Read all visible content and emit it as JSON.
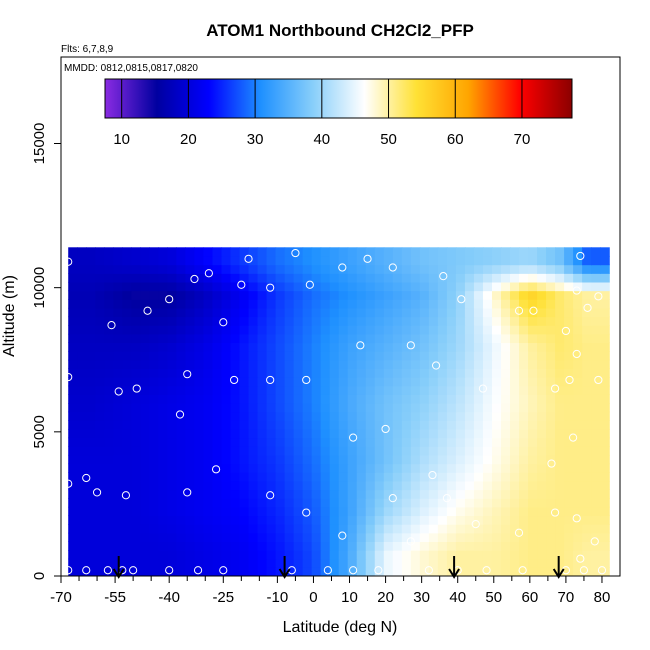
{
  "chart_data": {
    "type": "heatmap",
    "title": "ATOM1 Northbound CH2Cl2_PFP",
    "annotations": [
      "Flts: 6,7,8,9",
      "MMDD: 0812,0815,0817,0820"
    ],
    "xlabel": "Latitude (deg N)",
    "ylabel": "Altitude (m)",
    "xlim": [
      -70,
      85
    ],
    "ylim": [
      0,
      18000
    ],
    "x_ticks": [
      -70,
      -55,
      -40,
      -25,
      -10,
      0,
      10,
      20,
      30,
      40,
      50,
      60,
      70,
      80
    ],
    "x_tick_labels": [
      "-70",
      "-55",
      "-40",
      "-25",
      "-10",
      "0",
      "10",
      "20",
      "30",
      "40",
      "50",
      "60",
      "70",
      "80"
    ],
    "x_minor_ticks": [
      -65,
      -60,
      -50,
      -45,
      -35,
      -30,
      -20,
      -15,
      -5,
      5,
      15,
      25,
      35,
      45,
      55,
      65,
      75
    ],
    "y_ticks": [
      0,
      5000,
      10000,
      15000
    ],
    "y_tick_labels": [
      "0",
      "5000",
      "10000",
      "15000"
    ],
    "colorbar": {
      "min": 7.5,
      "max": 77.5,
      "ticks": [
        10,
        20,
        30,
        40,
        50,
        60,
        70
      ],
      "tick_labels": [
        "10",
        "20",
        "30",
        "40",
        "50",
        "60",
        "70"
      ],
      "colors": [
        "#8a2be2",
        "#0000a0",
        "#0000ff",
        "#1e90ff",
        "#87cefa",
        "#ffffff",
        "#ffe135",
        "#ffa500",
        "#ff0000",
        "#8b0000"
      ]
    },
    "grid": false,
    "value_grid": {
      "x_edges": [
        -68,
        -55,
        -45,
        -35,
        -25,
        -15,
        -5,
        5,
        15,
        25,
        35,
        45,
        55,
        65,
        72,
        80
      ],
      "y_edges": [
        0,
        1500,
        3000,
        5000,
        7000,
        9000,
        10500,
        11200
      ],
      "values": [
        [
          20,
          20,
          20,
          21,
          22,
          24,
          27,
          34,
          45,
          48,
          50,
          50,
          51,
          51,
          50
        ],
        [
          20,
          20,
          21,
          22,
          23,
          25,
          28,
          33,
          40,
          44,
          47,
          49,
          51,
          51,
          51
        ],
        [
          20,
          20,
          21,
          22,
          24,
          26,
          29,
          33,
          37,
          41,
          44,
          47,
          50,
          51,
          51
        ],
        [
          19,
          20,
          21,
          22,
          24,
          27,
          30,
          34,
          37,
          39,
          42,
          46,
          49,
          51,
          51
        ],
        [
          18,
          18,
          19,
          21,
          24,
          27,
          30,
          33,
          35,
          37,
          40,
          45,
          50,
          52,
          51
        ],
        [
          17,
          15,
          15,
          18,
          22,
          26,
          29,
          31,
          33,
          35,
          39,
          48,
          56,
          52,
          50
        ],
        [
          18,
          19,
          20,
          23,
          26,
          29,
          31,
          33,
          35,
          37,
          38,
          39,
          40,
          37,
          28
        ]
      ]
    },
    "observations": [
      [
        -68,
        200
      ],
      [
        -63,
        200
      ],
      [
        -57,
        200
      ],
      [
        -53,
        200
      ],
      [
        -50,
        200
      ],
      [
        -40,
        200
      ],
      [
        -32,
        200
      ],
      [
        -25,
        200
      ],
      [
        -6,
        200
      ],
      [
        4,
        200
      ],
      [
        11,
        200
      ],
      [
        18,
        200
      ],
      [
        32,
        200
      ],
      [
        40,
        200
      ],
      [
        48,
        200
      ],
      [
        58,
        200
      ],
      [
        70,
        200
      ],
      [
        75,
        200
      ],
      [
        80,
        200
      ],
      [
        74,
        600
      ],
      [
        78,
        1200
      ],
      [
        27,
        1200
      ],
      [
        8,
        1400
      ],
      [
        57,
        1500
      ],
      [
        73,
        2000
      ],
      [
        67,
        2200
      ],
      [
        -2,
        2200
      ],
      [
        45,
        1800
      ],
      [
        -60,
        2900
      ],
      [
        -52,
        2800
      ],
      [
        -35,
        2900
      ],
      [
        -12,
        2800
      ],
      [
        22,
        2700
      ],
      [
        37,
        2700
      ],
      [
        -68,
        3200
      ],
      [
        -63,
        3400
      ],
      [
        33,
        3500
      ],
      [
        66,
        3900
      ],
      [
        -27,
        3700
      ],
      [
        72,
        4800
      ],
      [
        11,
        4800
      ],
      [
        20,
        5100
      ],
      [
        -37,
        5600
      ],
      [
        -54,
        6400
      ],
      [
        -49,
        6500
      ],
      [
        71,
        6800
      ],
      [
        79,
        6800
      ],
      [
        67,
        6500
      ],
      [
        47,
        6500
      ],
      [
        -2,
        6800
      ],
      [
        -68,
        6900
      ],
      [
        -12,
        6800
      ],
      [
        -35,
        7000
      ],
      [
        -22,
        6800
      ],
      [
        34,
        7300
      ],
      [
        73,
        7700
      ],
      [
        27,
        8000
      ],
      [
        13,
        8000
      ],
      [
        -56,
        8700
      ],
      [
        -25,
        8800
      ],
      [
        70,
        8500
      ],
      [
        -46,
        9200
      ],
      [
        -40,
        9600
      ],
      [
        41,
        9600
      ],
      [
        57,
        9200
      ],
      [
        61,
        9200
      ],
      [
        76,
        9300
      ],
      [
        79,
        9700
      ],
      [
        -20,
        10100
      ],
      [
        -33,
        10300
      ],
      [
        -12,
        10000
      ],
      [
        -1,
        10100
      ],
      [
        36,
        10400
      ],
      [
        73,
        9900
      ],
      [
        -68,
        10900
      ],
      [
        -18,
        11000
      ],
      [
        -5,
        11200
      ],
      [
        8,
        10700
      ],
      [
        -29,
        10500
      ],
      [
        15,
        11000
      ],
      [
        22,
        10700
      ],
      [
        74,
        11100
      ]
    ],
    "arrows_x": [
      -54,
      -8,
      39,
      68
    ]
  }
}
